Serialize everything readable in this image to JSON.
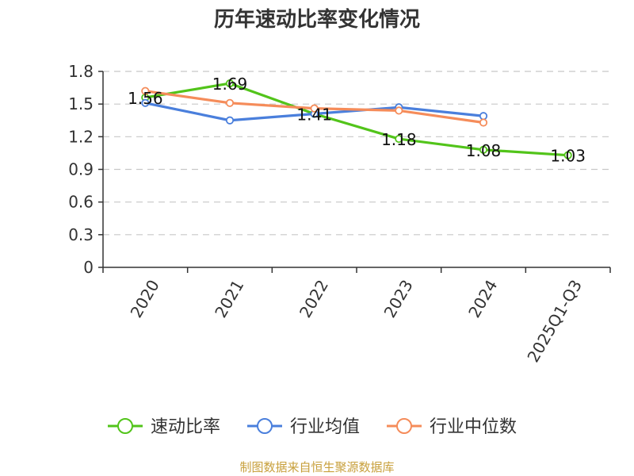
{
  "chart_data": {
    "type": "line",
    "title": "历年速动比率变化情况",
    "categories": [
      "2020",
      "2021",
      "2022",
      "2023",
      "2024",
      "2025Q1-Q3"
    ],
    "ylim": [
      0,
      1.8
    ],
    "yticks": [
      "0",
      "0.3",
      "0.6",
      "0.9",
      "1.2",
      "1.5",
      "1.8"
    ],
    "grid": true,
    "legend_position": "bottom",
    "series": [
      {
        "name": "速动比率",
        "color": "#52c41a",
        "values": [
          1.56,
          1.69,
          1.41,
          1.18,
          1.08,
          1.03
        ],
        "labels": [
          "1.56",
          "1.69",
          "1.41",
          "1.18",
          "1.08",
          "1.03"
        ]
      },
      {
        "name": "行业均值",
        "color": "#4a7fdc",
        "values": [
          1.51,
          1.35,
          1.41,
          1.47,
          1.39,
          null
        ]
      },
      {
        "name": "行业中位数",
        "color": "#f58c5a",
        "values": [
          1.62,
          1.51,
          1.46,
          1.44,
          1.33,
          null
        ]
      }
    ]
  },
  "source_note": "制图数据来自恒生聚源数据库"
}
